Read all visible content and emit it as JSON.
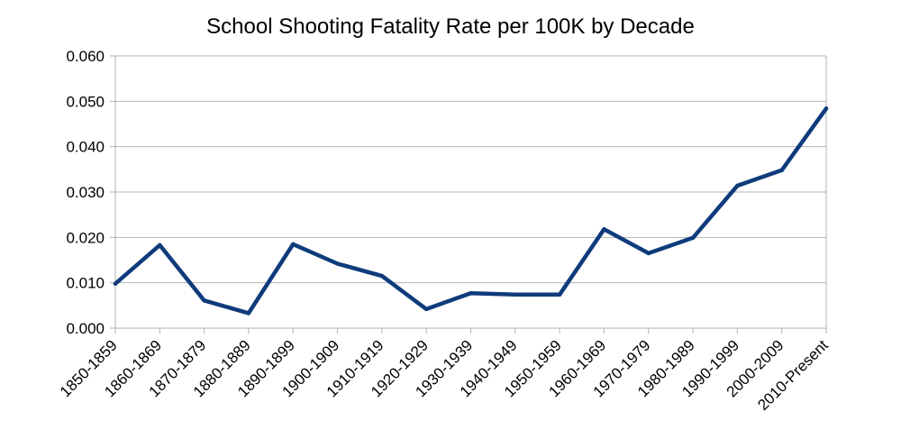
{
  "chart_data": {
    "type": "line",
    "title": "School Shooting Fatality Rate per 100K by Decade",
    "xlabel": "",
    "ylabel": "",
    "categories": [
      "1850-1859",
      "1860-1869",
      "1870-1879",
      "1880-1889",
      "1890-1899",
      "1900-1909",
      "1910-1919",
      "1920-1929",
      "1930-1939",
      "1940-1949",
      "1950-1959",
      "1960-1969",
      "1970-1979",
      "1980-1989",
      "1990-1999",
      "2000-2009",
      "2010-Present"
    ],
    "series": [
      {
        "values": [
          0.0098,
          0.0183,
          0.0061,
          0.0033,
          0.0185,
          0.0142,
          0.0115,
          0.0042,
          0.0077,
          0.0074,
          0.0074,
          0.0218,
          0.0165,
          0.0199,
          0.0314,
          0.0348,
          0.0484
        ],
        "color": "#0e3b7b"
      }
    ],
    "ylim": [
      0,
      0.06
    ],
    "yticks": [
      0,
      0.01,
      0.02,
      0.03,
      0.04,
      0.05,
      0.06
    ],
    "ytick_labels": [
      "0.000",
      "0.010",
      "0.020",
      "0.030",
      "0.040",
      "0.050",
      "0.060"
    ],
    "grid": true,
    "legend": "none"
  }
}
